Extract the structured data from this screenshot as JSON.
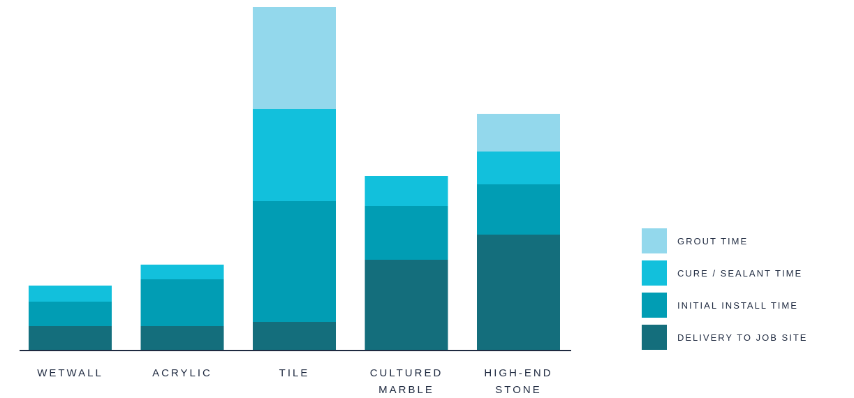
{
  "chart_data": {
    "type": "bar",
    "stacked": true,
    "categories": [
      [
        "WETWALL"
      ],
      [
        "ACRYLIC"
      ],
      [
        "TILE"
      ],
      [
        "CULTURED",
        "MARBLE"
      ],
      [
        "HIGH-END",
        "STONE"
      ]
    ],
    "series": [
      {
        "name": "DELIVERY TO JOB SITE",
        "color": "#146e7c",
        "values": [
          35,
          35,
          41,
          130,
          166
        ]
      },
      {
        "name": "INITIAL INSTALL TIME",
        "color": "#019db4",
        "values": [
          35,
          67,
          173,
          77,
          72
        ]
      },
      {
        "name": "CURE / SEALANT TIME",
        "color": "#12c0dc",
        "values": [
          23,
          21,
          132,
          43,
          47
        ]
      },
      {
        "name": "GROUT TIME",
        "color": "#93d8ec",
        "values": [
          0,
          0,
          146,
          0,
          54
        ]
      }
    ],
    "legend_order": [
      "GROUT TIME",
      "CURE / SEALANT TIME",
      "INITIAL INSTALL TIME",
      "DELIVERY TO JOB SITE"
    ],
    "legend_position": "right",
    "ylim": [
      0,
      492
    ],
    "grid": false,
    "title": "",
    "xlabel": "",
    "ylabel": "",
    "axis_color": "#1f2a40"
  }
}
